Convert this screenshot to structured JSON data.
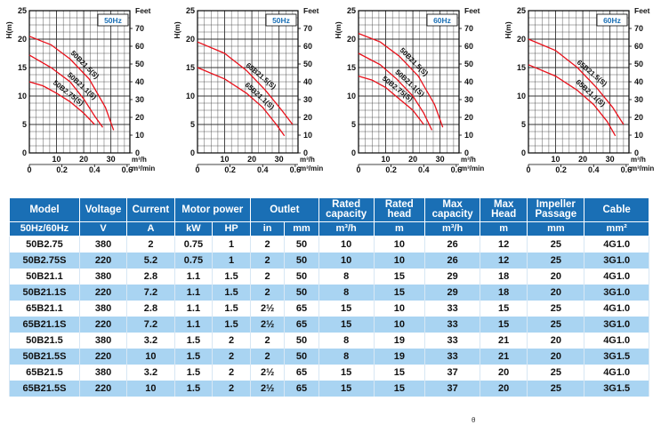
{
  "chart_data": [
    {
      "type": "line",
      "badge": "50Hz",
      "ylabel": "H(m)",
      "ylabel2": "Feet",
      "ylim": [
        0,
        25
      ],
      "y2lim": [
        0,
        80
      ],
      "yticks": [
        0,
        5,
        10,
        15,
        20,
        25
      ],
      "y2ticks": [
        0,
        10,
        20,
        30,
        40,
        50,
        60,
        70
      ],
      "xlim": [
        0,
        37
      ],
      "xticks": [
        10,
        20,
        30
      ],
      "xunit": "m³/h",
      "x2lim": [
        0,
        0.617
      ],
      "x2ticks": [
        "0",
        "0.2",
        "0.4",
        "0.6"
      ],
      "x2unit": "m³/min",
      "series": [
        {
          "name": "50B21.5(S)",
          "x": [
            0,
            8,
            15,
            22,
            28,
            31
          ],
          "y": [
            20.5,
            19,
            16.5,
            13,
            8,
            4
          ]
        },
        {
          "name": "50B21.1(S)",
          "x": [
            0,
            8,
            15,
            20,
            24,
            27
          ],
          "y": [
            17.2,
            15,
            12.5,
            9.5,
            6.5,
            4.5
          ]
        },
        {
          "name": "50B2.75(S)",
          "x": [
            0,
            5,
            10,
            15,
            20,
            24
          ],
          "y": [
            12.5,
            11.8,
            10.5,
            9,
            7,
            5
          ]
        }
      ]
    },
    {
      "type": "line",
      "badge": "50Hz",
      "ylabel": "H(m)",
      "ylabel2": "Feet",
      "ylim": [
        0,
        25
      ],
      "y2lim": [
        0,
        80
      ],
      "yticks": [
        0,
        5,
        10,
        15,
        20,
        25
      ],
      "y2ticks": [
        0,
        10,
        20,
        30,
        40,
        50,
        60,
        70
      ],
      "xlim": [
        0,
        37
      ],
      "xticks": [
        10,
        20,
        30
      ],
      "xunit": "m³/h",
      "x2lim": [
        0,
        0.617
      ],
      "x2ticks": [
        "0",
        "0.2",
        "0.4",
        "0.6"
      ],
      "x2unit": "m³/min",
      "series": [
        {
          "name": "65B21.5(S)",
          "x": [
            0,
            10,
            18,
            25,
            31,
            35
          ],
          "y": [
            19.5,
            17.5,
            14.5,
            11,
            7.5,
            5
          ]
        },
        {
          "name": "65B21.1(S)",
          "x": [
            0,
            10,
            18,
            24,
            29,
            32
          ],
          "y": [
            15,
            13,
            10.5,
            8,
            5,
            3
          ]
        }
      ]
    },
    {
      "type": "line",
      "badge": "60Hz",
      "ylabel": "H(m)",
      "ylabel2": "Feet",
      "ylim": [
        0,
        25
      ],
      "y2lim": [
        0,
        80
      ],
      "yticks": [
        0,
        5,
        10,
        15,
        20,
        25
      ],
      "y2ticks": [
        0,
        10,
        20,
        30,
        40,
        50,
        60,
        70
      ],
      "xlim": [
        0,
        37
      ],
      "xticks": [
        10,
        20,
        30
      ],
      "xunit": "m³/h",
      "x2lim": [
        0,
        0.617
      ],
      "x2ticks": [
        "0",
        "0.2",
        "0.4",
        "0.6"
      ],
      "x2unit": "m³/min",
      "series": [
        {
          "name": "50B21.5(S)",
          "x": [
            0,
            8,
            15,
            22,
            28,
            31
          ],
          "y": [
            21,
            19.5,
            17,
            13.5,
            8.5,
            4.5
          ]
        },
        {
          "name": "50B21.1(S)",
          "x": [
            0,
            8,
            14,
            20,
            24,
            27
          ],
          "y": [
            17.5,
            15.5,
            13,
            10,
            7,
            4
          ]
        },
        {
          "name": "50B2.75(S)",
          "x": [
            0,
            5,
            10,
            15,
            20,
            24
          ],
          "y": [
            13.5,
            12.8,
            11.5,
            9.5,
            7.5,
            5
          ]
        }
      ]
    },
    {
      "type": "line",
      "badge": "60Hz",
      "ylabel": "H(m)",
      "ylabel2": "Feet",
      "ylim": [
        0,
        25
      ],
      "y2lim": [
        0,
        80
      ],
      "yticks": [
        0,
        5,
        10,
        15,
        20,
        25
      ],
      "y2ticks": [
        0,
        10,
        20,
        30,
        40,
        50,
        60,
        70
      ],
      "xlim": [
        0,
        37
      ],
      "xticks": [
        10,
        20,
        30
      ],
      "xunit": "m³/h",
      "x2lim": [
        0,
        0.617
      ],
      "x2ticks": [
        "0",
        "0.2",
        "0.4",
        "0.6"
      ],
      "x2unit": "m³/min",
      "series": [
        {
          "name": "65B21.5(S)",
          "x": [
            0,
            10,
            18,
            25,
            31,
            35
          ],
          "y": [
            20,
            18,
            15,
            11.5,
            8,
            5
          ]
        },
        {
          "name": "65B21.1(S)",
          "x": [
            0,
            10,
            18,
            24,
            29,
            32
          ],
          "y": [
            15.5,
            13.5,
            11,
            8.5,
            5.5,
            3
          ]
        }
      ]
    }
  ],
  "table": {
    "header": {
      "model": "Model",
      "model_sub": "50Hz/60Hz",
      "voltage": "Voltage",
      "voltage_unit": "V",
      "current": "Current",
      "current_unit": "A",
      "motor_power": "Motor power",
      "kw": "kW",
      "hp": "HP",
      "outlet": "Outlet",
      "outlet_in": "in",
      "outlet_mm": "mm",
      "rated_capacity": "Rated capacity",
      "rated_capacity_unit": "m³/h",
      "rated_head": "Rated head",
      "rated_head_unit": "m",
      "max_capacity": "Max capacity",
      "max_capacity_unit": "m³/h",
      "max_head": "Max Head",
      "max_head_unit": "m",
      "impeller": "Impeller Passage",
      "impeller_unit": "mm",
      "cable": "Cable",
      "cable_unit": "mm²"
    },
    "rows": [
      {
        "model": "50B2.75",
        "v": "380",
        "a": "2",
        "kw": "0.75",
        "hp": "1",
        "in": "2",
        "mm": "50",
        "rc": "10",
        "rh": "10",
        "mc": "26",
        "mh": "12",
        "imp": "25",
        "cable": "4G1.0"
      },
      {
        "model": "50B2.75S",
        "v": "220",
        "a": "5.2",
        "kw": "0.75",
        "hp": "1",
        "in": "2",
        "mm": "50",
        "rc": "10",
        "rh": "10",
        "mc": "26",
        "mh": "12",
        "imp": "25",
        "cable": "3G1.0"
      },
      {
        "model": "50B21.1",
        "v": "380",
        "a": "2.8",
        "kw": "1.1",
        "hp": "1.5",
        "in": "2",
        "mm": "50",
        "rc": "8",
        "rh": "15",
        "mc": "29",
        "mh": "18",
        "imp": "20",
        "cable": "4G1.0"
      },
      {
        "model": "50B21.1S",
        "v": "220",
        "a": "7.2",
        "kw": "1.1",
        "hp": "1.5",
        "in": "2",
        "mm": "50",
        "rc": "8",
        "rh": "15",
        "mc": "29",
        "mh": "18",
        "imp": "20",
        "cable": "3G1.0"
      },
      {
        "model": "65B21.1",
        "v": "380",
        "a": "2.8",
        "kw": "1.1",
        "hp": "1.5",
        "in": "2½",
        "mm": "65",
        "rc": "15",
        "rh": "10",
        "mc": "33",
        "mh": "15",
        "imp": "25",
        "cable": "4G1.0"
      },
      {
        "model": "65B21.1S",
        "v": "220",
        "a": "7.2",
        "kw": "1.1",
        "hp": "1.5",
        "in": "2½",
        "mm": "65",
        "rc": "15",
        "rh": "10",
        "mc": "33",
        "mh": "15",
        "imp": "25",
        "cable": "3G1.0"
      },
      {
        "model": "50B21.5",
        "v": "380",
        "a": "3.2",
        "kw": "1.5",
        "hp": "2",
        "in": "2",
        "mm": "50",
        "rc": "8",
        "rh": "19",
        "mc": "33",
        "mh": "21",
        "imp": "20",
        "cable": "4G1.0"
      },
      {
        "model": "50B21.5S",
        "v": "220",
        "a": "10",
        "kw": "1.5",
        "hp": "2",
        "in": "2",
        "mm": "50",
        "rc": "8",
        "rh": "19",
        "mc": "33",
        "mh": "21",
        "imp": "20",
        "cable": "3G1.5"
      },
      {
        "model": "65B21.5",
        "v": "380",
        "a": "3.2",
        "kw": "1.5",
        "hp": "2",
        "in": "2½",
        "mm": "65",
        "rc": "15",
        "rh": "15",
        "mc": "37",
        "mh": "20",
        "imp": "25",
        "cable": "4G1.0"
      },
      {
        "model": "65B21.5S",
        "v": "220",
        "a": "10",
        "kw": "1.5",
        "hp": "2",
        "in": "2½",
        "mm": "65",
        "rc": "15",
        "rh": "15",
        "mc": "37",
        "mh": "20",
        "imp": "25",
        "cable": "3G1.5"
      }
    ]
  },
  "footer_mark": "θ",
  "colors": {
    "curve": "#e8101a",
    "grid": "#333333",
    "header": "#1a6fb5",
    "stripe": "#a9d4f2",
    "badge": "#1a6fb5"
  }
}
